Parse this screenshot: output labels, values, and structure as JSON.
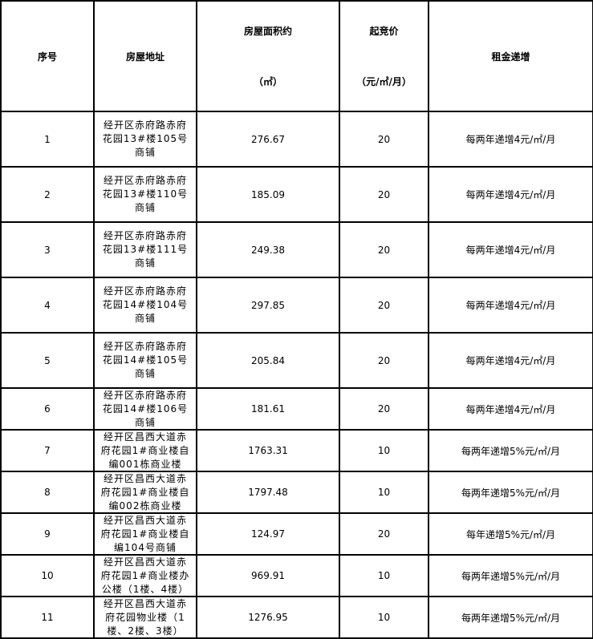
{
  "header": {
    "index": "序号",
    "address": "房屋地址",
    "area_line1": "房屋面积约",
    "area_line2": "（㎡）",
    "price_line1": "起竞价",
    "price_line2": "（元/㎡/月）",
    "increase": "租金递增"
  },
  "rows": [
    {
      "index": "1",
      "address": "经开区赤府路赤府花园13#楼105号商铺",
      "area": "276.67",
      "price": "20",
      "increase": "每两年递增4元/㎡/月"
    },
    {
      "index": "2",
      "address": "经开区赤府路赤府花园13#楼110号商铺",
      "area": "185.09",
      "price": "20",
      "increase": "每两年递增4元/㎡/月"
    },
    {
      "index": "3",
      "address": "经开区赤府路赤府花园13#楼111号商铺",
      "area": "249.38",
      "price": "20",
      "increase": "每两年递增4元/㎡/月"
    },
    {
      "index": "4",
      "address": "经开区赤府路赤府花园14#楼104号商铺",
      "area": "297.85",
      "price": "20",
      "increase": "每两年递增4元/㎡/月"
    },
    {
      "index": "5",
      "address": "经开区赤府路赤府花园14#楼105号商铺",
      "area": "205.84",
      "price": "20",
      "increase": "每两年递增4元/㎡/月"
    },
    {
      "index": "6",
      "address": "经开区赤府路赤府花园14#楼106号商铺",
      "area": "181.61",
      "price": "20",
      "increase": "每两年递增4元/㎡/月"
    },
    {
      "index": "7",
      "address": "经开区昌西大道赤府花园1#商业楼自编001栋商业楼",
      "area": "1763.31",
      "price": "10",
      "increase": "每两年递增5%元/㎡/月"
    },
    {
      "index": "8",
      "address": "经开区昌西大道赤府花园1#商业楼自编002栋商业楼",
      "area": "1797.48",
      "price": "10",
      "increase": "每两年递增5%元/㎡/月"
    },
    {
      "index": "9",
      "address": "经开区昌西大道赤府花园1#商业楼自编104号商铺",
      "area": "124.97",
      "price": "20",
      "increase": "每年递增5%元/㎡/月"
    },
    {
      "index": "10",
      "address": "经开区昌西大道赤府花园1#商业楼办公楼（1楼、4楼）",
      "area": "969.91",
      "price": "10",
      "increase": "每两年递增5%元/㎡/月"
    },
    {
      "index": "11",
      "address": "经开区昌西大道赤府花园物业楼（1楼、2楼、3楼）",
      "area": "1276.95",
      "price": "10",
      "increase": "每两年递增5%元/㎡/月"
    }
  ]
}
